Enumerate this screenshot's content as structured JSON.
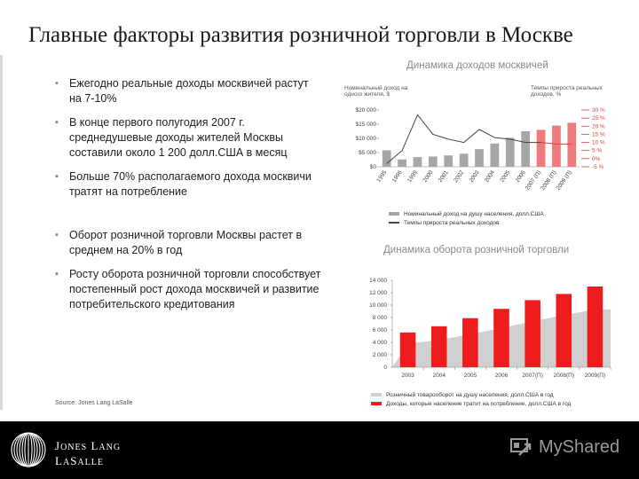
{
  "slide": {
    "title": "Главные факторы развития розничной торговли в Москве",
    "bullets_top": [
      "Ежегодно реальные доходы москвичей растут на 7-10%",
      "В конце первого полугодия 2007 г. среднедушевые доходы жителей Москвы составили около 1 200 долл.США в месяц",
      "Больше 70% располагаемого дохода москвичи тратят на потребление"
    ],
    "bullets_bottom": [
      "Оборот розничной торговли Москвы растет в среднем на 20% в год",
      "Росту оборота розничной торговли способствует постепенный рост дохода москвичей и развитие потребительского кредитования"
    ],
    "source": "Source: Jones Lang LaSalle"
  },
  "chart1": {
    "title": "Динамика доходов москвичей",
    "left_axis_caption": "Номинальный доход на одного жителя, $",
    "right_axis_caption": "Темпы прироста реальных доходов, %",
    "type": "bar+line",
    "categories": [
      "1995",
      "1996",
      "1999",
      "2000",
      "2001",
      "2002",
      "2003",
      "2004",
      "2005",
      "2006",
      "2007 (П)",
      "2008 (П)",
      "2009 (П)"
    ],
    "y_ticks": [
      "$0",
      "$5 000",
      "$10 000",
      "$15 000",
      "$20 000"
    ],
    "y2_ticks": [
      "-5 %",
      "0%",
      "5 %",
      "10 %",
      "15 %",
      "20 %",
      "25 %",
      "30 %"
    ],
    "legend": [
      "Номинальный доход на душу населения, долл.США",
      "Темпы прироста реальных доходов"
    ],
    "colors": {
      "bar": "#a6a6a6",
      "bar_forecast": "#ee7b7b",
      "line": "#444444",
      "line_forecast": "#e04040"
    }
  },
  "chart2": {
    "title": "Динамика оборота розничной торговли",
    "type": "bar+area",
    "categories": [
      "2003",
      "2004",
      "2005",
      "2006",
      "2007(П)",
      "2008(П)",
      "2009(П)"
    ],
    "y_ticks": [
      "0",
      "2 000",
      "4 000",
      "6 000",
      "8 000",
      "10 000",
      "12 000",
      "14 000"
    ],
    "legend": [
      "Розничный товарооборот на душу населения, долл.США в год",
      "Доходы, которые население тратит на потребление, долл.США в год"
    ],
    "colors": {
      "bar": "#ee1c1c",
      "area": "#d0d0d0"
    }
  },
  "chart_data": [
    {
      "type": "bar",
      "title": "Динамика доходов москвичей",
      "categories": [
        "1995",
        "1996",
        "1999",
        "2000",
        "2001",
        "2002",
        "2003",
        "2004",
        "2005",
        "2006",
        "2007 (П)",
        "2008 (П)",
        "2009 (П)"
      ],
      "series": [
        {
          "name": "Номинальный доход на душу населения, долл.США",
          "values": [
            5800,
            2600,
            3400,
            3600,
            4000,
            4600,
            6200,
            8200,
            10200,
            12500,
            13000,
            14500,
            15500
          ]
        },
        {
          "name": "Темпы прироста реальных доходов",
          "values": [
            -3,
            5,
            27,
            15,
            12,
            10,
            18,
            13,
            12,
            10,
            10,
            9,
            9
          ]
        }
      ],
      "ylim": [
        0,
        20000
      ],
      "y2lim": [
        -5,
        30
      ]
    },
    {
      "type": "bar",
      "title": "Динамика оборота розничной торговли",
      "categories": [
        "2003",
        "2004",
        "2005",
        "2006",
        "2007(П)",
        "2008(П)",
        "2009(П)"
      ],
      "series": [
        {
          "name": "Розничный товарооборот на душу населения, долл.США в год",
          "values": [
            5600,
            6600,
            7900,
            9400,
            10800,
            11800,
            13000
          ]
        },
        {
          "name": "Доходы, которые население тратит на потребление, долл.США в год",
          "values": [
            3800,
            4400,
            5300,
            6300,
            7400,
            8400,
            9300
          ]
        }
      ],
      "ylim": [
        0,
        14000
      ]
    }
  ]
}
